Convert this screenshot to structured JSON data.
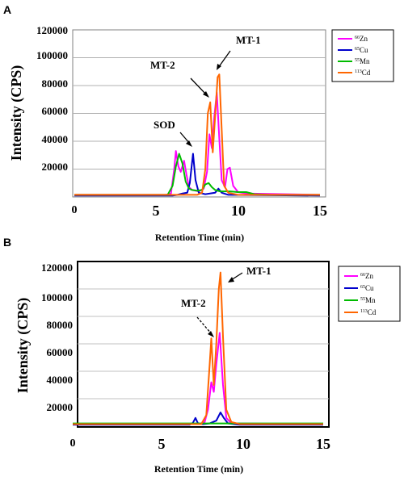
{
  "chart_data": [
    {
      "panel": "A",
      "type": "line",
      "xlabel": "Retention Time (min)",
      "ylabel": "Intensity (CPS)",
      "xlim": [
        0,
        15
      ],
      "ylim": [
        0,
        120000
      ],
      "x_ticks": [
        "0",
        "5",
        "10",
        "15"
      ],
      "y_ticks": [
        "20000",
        "40000",
        "60000",
        "80000",
        "100000",
        "120000"
      ],
      "grid": "horizontal",
      "legend_position": "right",
      "annotations": [
        "MT-1",
        "MT-2",
        "SOD"
      ],
      "series": [
        {
          "name": "66Zn",
          "sup": "66",
          "el": "Zn",
          "color": "#ff00ff",
          "points": [
            [
              0,
              1500
            ],
            [
              5.6,
              1500
            ],
            [
              5.9,
              2500
            ],
            [
              6.1,
              20000
            ],
            [
              6.2,
              33000
            ],
            [
              6.35,
              22000
            ],
            [
              6.5,
              18000
            ],
            [
              6.7,
              26000
            ],
            [
              6.85,
              16000
            ],
            [
              7.0,
              7000
            ],
            [
              7.2,
              5000
            ],
            [
              7.6,
              4000
            ],
            [
              7.9,
              6000
            ],
            [
              8.1,
              18000
            ],
            [
              8.25,
              45000
            ],
            [
              8.4,
              35000
            ],
            [
              8.55,
              58000
            ],
            [
              8.7,
              75000
            ],
            [
              8.85,
              42000
            ],
            [
              9.0,
              12000
            ],
            [
              9.2,
              7000
            ],
            [
              9.35,
              20000
            ],
            [
              9.5,
              21000
            ],
            [
              9.7,
              8000
            ],
            [
              10.0,
              3500
            ],
            [
              10.5,
              2500
            ],
            [
              15,
              1500
            ]
          ]
        },
        {
          "name": "65Cu",
          "sup": "65",
          "el": "Cu",
          "color": "#0000cc",
          "points": [
            [
              0,
              1000
            ],
            [
              6.0,
              1000
            ],
            [
              6.3,
              1500
            ],
            [
              6.6,
              2500
            ],
            [
              6.9,
              3000
            ],
            [
              7.05,
              10000
            ],
            [
              7.25,
              31000
            ],
            [
              7.4,
              12000
            ],
            [
              7.6,
              3000
            ],
            [
              8.0,
              2000
            ],
            [
              8.6,
              3000
            ],
            [
              8.8,
              6000
            ],
            [
              9.0,
              3000
            ],
            [
              9.4,
              1500
            ],
            [
              15,
              1000
            ]
          ]
        },
        {
          "name": "55Mn",
          "sup": "55",
          "el": "Mn",
          "color": "#00bb00",
          "points": [
            [
              0,
              1500
            ],
            [
              5.7,
              1500
            ],
            [
              6.0,
              8000
            ],
            [
              6.2,
              22000
            ],
            [
              6.4,
              31000
            ],
            [
              6.6,
              24000
            ],
            [
              6.8,
              11000
            ],
            [
              7.0,
              6000
            ],
            [
              7.2,
              5000
            ],
            [
              7.5,
              4500
            ],
            [
              7.8,
              5000
            ],
            [
              8.0,
              9000
            ],
            [
              8.2,
              10000
            ],
            [
              8.4,
              7000
            ],
            [
              8.6,
              5000
            ],
            [
              8.9,
              4000
            ],
            [
              9.5,
              4000
            ],
            [
              10.0,
              3500
            ],
            [
              10.5,
              3500
            ],
            [
              11.0,
              2000
            ],
            [
              12.0,
              1500
            ],
            [
              15,
              1500
            ]
          ]
        },
        {
          "name": "113Cd",
          "sup": "113",
          "el": "Cd",
          "color": "#ff6600",
          "points": [
            [
              0,
              1500
            ],
            [
              7.5,
              1500
            ],
            [
              7.8,
              3000
            ],
            [
              8.0,
              20000
            ],
            [
              8.15,
              60000
            ],
            [
              8.3,
              68000
            ],
            [
              8.45,
              32000
            ],
            [
              8.6,
              58000
            ],
            [
              8.75,
              86000
            ],
            [
              8.85,
              88000
            ],
            [
              9.0,
              48000
            ],
            [
              9.15,
              8000
            ],
            [
              9.4,
              3000
            ],
            [
              10.0,
              1500
            ],
            [
              15,
              1500
            ]
          ]
        }
      ]
    },
    {
      "panel": "B",
      "type": "line",
      "xlabel": "Retention Time (min)",
      "ylabel": "Intensity (CPS)",
      "xlim": [
        0,
        15
      ],
      "ylim": [
        0,
        120000
      ],
      "x_ticks": [
        "0",
        "5",
        "10",
        "15"
      ],
      "y_ticks": [
        "20000",
        "40000",
        "60000",
        "80000",
        "100000",
        "120000"
      ],
      "grid": "horizontal",
      "legend_position": "right",
      "annotations": [
        "MT-1",
        "MT-2"
      ],
      "series": [
        {
          "name": "66Zn",
          "sup": "66",
          "el": "Zn",
          "color": "#ff00ff",
          "points": [
            [
              0,
              1500
            ],
            [
              7.6,
              1500
            ],
            [
              7.9,
              3000
            ],
            [
              8.1,
              12000
            ],
            [
              8.3,
              32000
            ],
            [
              8.45,
              25000
            ],
            [
              8.6,
              45000
            ],
            [
              8.8,
              68000
            ],
            [
              9.0,
              30000
            ],
            [
              9.2,
              6000
            ],
            [
              9.5,
              2000
            ],
            [
              15,
              1500
            ]
          ]
        },
        {
          "name": "65Cu",
          "sup": "65",
          "el": "Cu",
          "color": "#0000cc",
          "points": [
            [
              0,
              1000
            ],
            [
              7.0,
              1000
            ],
            [
              7.2,
              2500
            ],
            [
              7.35,
              6000
            ],
            [
              7.5,
              2000
            ],
            [
              7.8,
              1500
            ],
            [
              8.2,
              2000
            ],
            [
              8.6,
              4000
            ],
            [
              8.85,
              10000
            ],
            [
              9.05,
              6000
            ],
            [
              9.3,
              2000
            ],
            [
              10.0,
              1000
            ],
            [
              15,
              1000
            ]
          ]
        },
        {
          "name": "55Mn",
          "sup": "55",
          "el": "Mn",
          "color": "#00bb00",
          "points": [
            [
              0,
              2000
            ],
            [
              15,
              2000
            ]
          ]
        },
        {
          "name": "113Cd",
          "sup": "113",
          "el": "Cd",
          "color": "#ff6600",
          "points": [
            [
              0,
              1500
            ],
            [
              7.7,
              1500
            ],
            [
              8.0,
              8000
            ],
            [
              8.2,
              45000
            ],
            [
              8.3,
              64000
            ],
            [
              8.45,
              30000
            ],
            [
              8.6,
              60000
            ],
            [
              8.75,
              100000
            ],
            [
              8.85,
              112000
            ],
            [
              9.0,
              65000
            ],
            [
              9.2,
              12000
            ],
            [
              9.5,
              3000
            ],
            [
              10.0,
              1500
            ],
            [
              15,
              1500
            ]
          ]
        }
      ]
    }
  ]
}
